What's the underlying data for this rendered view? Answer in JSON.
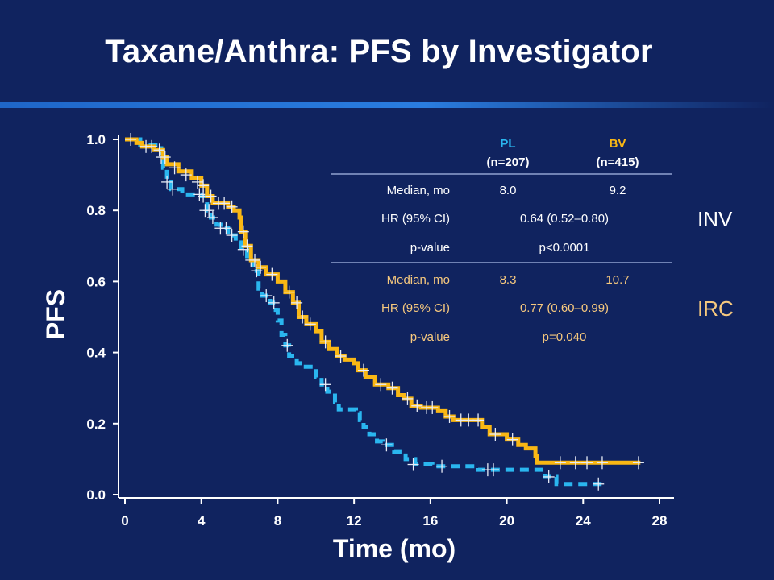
{
  "title": "Taxane/Anthra:  PFS by Investigator",
  "colors": {
    "background": "#10235f",
    "accent_rule": "#1f66c8",
    "pl": "#2ab6ef",
    "bv": "#f9b714",
    "irc_text": "#f7c97e",
    "pl_header": "#2ab6ef",
    "bv_header": "#f9b714"
  },
  "table": {
    "headers": [
      {
        "name": "PL",
        "n": "(n=207)"
      },
      {
        "name": "BV",
        "n": "(n=415)"
      }
    ],
    "inv": {
      "label": "INV",
      "rows": [
        {
          "label": "Median, mo",
          "pl": "8.0",
          "bv": "9.2"
        },
        {
          "label": "HR (95% CI)",
          "value": "0.64 (0.52–0.80)"
        },
        {
          "label": "p-value",
          "value": "p<0.0001"
        }
      ]
    },
    "irc": {
      "label": "IRC",
      "rows": [
        {
          "label": "Median, mo",
          "pl": "8.3",
          "bv": "10.7"
        },
        {
          "label": "HR (95% CI)",
          "value": "0.77 (0.60–0.99)"
        },
        {
          "label": "p-value",
          "value": "p=0.040"
        }
      ]
    }
  },
  "chart_data": {
    "type": "line",
    "xlabel": "Time (mo)",
    "ylabel": "PFS",
    "xlim": [
      0,
      28
    ],
    "ylim": [
      0,
      1.0
    ],
    "xticks": [
      "0",
      "4",
      "8",
      "12",
      "16",
      "20",
      "24",
      "28"
    ],
    "yticks": [
      "0.0",
      "0.2",
      "0.4",
      "0.6",
      "0.8",
      "1.0"
    ],
    "series": [
      {
        "name": "BV",
        "style": "solid",
        "color": "#f9b714",
        "step": [
          [
            0,
            1.0
          ],
          [
            0.6,
            0.99
          ],
          [
            0.9,
            0.98
          ],
          [
            1.5,
            0.97
          ],
          [
            2.0,
            0.95
          ],
          [
            2.2,
            0.93
          ],
          [
            2.8,
            0.91
          ],
          [
            3.5,
            0.89
          ],
          [
            4.0,
            0.87
          ],
          [
            4.3,
            0.84
          ],
          [
            4.6,
            0.82
          ],
          [
            5.4,
            0.81
          ],
          [
            5.7,
            0.8
          ],
          [
            6.0,
            0.78
          ],
          [
            6.1,
            0.74
          ],
          [
            6.3,
            0.7
          ],
          [
            6.6,
            0.66
          ],
          [
            7.0,
            0.64
          ],
          [
            7.4,
            0.62
          ],
          [
            8.0,
            0.6
          ],
          [
            8.4,
            0.57
          ],
          [
            8.8,
            0.54
          ],
          [
            9.1,
            0.5
          ],
          [
            9.5,
            0.48
          ],
          [
            10.0,
            0.46
          ],
          [
            10.3,
            0.43
          ],
          [
            10.7,
            0.41
          ],
          [
            11.1,
            0.39
          ],
          [
            11.5,
            0.38
          ],
          [
            12.0,
            0.37
          ],
          [
            12.2,
            0.35
          ],
          [
            12.6,
            0.33
          ],
          [
            13.1,
            0.31
          ],
          [
            13.8,
            0.3
          ],
          [
            14.3,
            0.28
          ],
          [
            14.6,
            0.27
          ],
          [
            15.0,
            0.25
          ],
          [
            15.5,
            0.245
          ],
          [
            16.4,
            0.235
          ],
          [
            16.8,
            0.22
          ],
          [
            17.2,
            0.21
          ],
          [
            18.3,
            0.21
          ],
          [
            18.7,
            0.19
          ],
          [
            19.1,
            0.17
          ],
          [
            20.0,
            0.155
          ],
          [
            20.6,
            0.14
          ],
          [
            21.0,
            0.13
          ],
          [
            21.5,
            0.11
          ],
          [
            21.6,
            0.09
          ],
          [
            27.0,
            0.09
          ]
        ],
        "censors": [
          [
            0.3,
            1.0
          ],
          [
            1.1,
            0.98
          ],
          [
            1.4,
            0.98
          ],
          [
            1.8,
            0.97
          ],
          [
            2.1,
            0.95
          ],
          [
            2.6,
            0.92
          ],
          [
            3.2,
            0.9
          ],
          [
            3.8,
            0.88
          ],
          [
            4.1,
            0.87
          ],
          [
            4.5,
            0.84
          ],
          [
            4.9,
            0.82
          ],
          [
            5.2,
            0.82
          ],
          [
            5.6,
            0.81
          ],
          [
            6.2,
            0.74
          ],
          [
            6.4,
            0.7
          ],
          [
            6.8,
            0.66
          ],
          [
            7.1,
            0.64
          ],
          [
            7.7,
            0.62
          ],
          [
            8.6,
            0.57
          ],
          [
            9.0,
            0.54
          ],
          [
            9.3,
            0.5
          ],
          [
            9.7,
            0.48
          ],
          [
            10.5,
            0.43
          ],
          [
            11.3,
            0.39
          ],
          [
            12.5,
            0.35
          ],
          [
            13.4,
            0.31
          ],
          [
            14.0,
            0.3
          ],
          [
            14.8,
            0.27
          ],
          [
            15.3,
            0.25
          ],
          [
            15.8,
            0.245
          ],
          [
            16.1,
            0.245
          ],
          [
            17.0,
            0.22
          ],
          [
            17.6,
            0.21
          ],
          [
            18.0,
            0.21
          ],
          [
            18.5,
            0.21
          ],
          [
            19.4,
            0.17
          ],
          [
            20.3,
            0.155
          ],
          [
            22.8,
            0.09
          ],
          [
            23.6,
            0.09
          ],
          [
            24.2,
            0.09
          ],
          [
            25.0,
            0.09
          ],
          [
            26.9,
            0.09
          ]
        ]
      },
      {
        "name": "PL",
        "style": "dashed",
        "color": "#2ab6ef",
        "step": [
          [
            0,
            1.0
          ],
          [
            0.8,
            0.985
          ],
          [
            1.6,
            0.975
          ],
          [
            1.9,
            0.95
          ],
          [
            2.0,
            0.92
          ],
          [
            2.2,
            0.88
          ],
          [
            2.4,
            0.86
          ],
          [
            3.0,
            0.845
          ],
          [
            4.0,
            0.84
          ],
          [
            4.3,
            0.8
          ],
          [
            4.5,
            0.78
          ],
          [
            4.8,
            0.76
          ],
          [
            5.0,
            0.75
          ],
          [
            5.4,
            0.73
          ],
          [
            5.8,
            0.71
          ],
          [
            6.1,
            0.69
          ],
          [
            6.4,
            0.66
          ],
          [
            6.7,
            0.63
          ],
          [
            7.0,
            0.58
          ],
          [
            7.2,
            0.56
          ],
          [
            7.6,
            0.54
          ],
          [
            7.9,
            0.52
          ],
          [
            8.0,
            0.49
          ],
          [
            8.2,
            0.45
          ],
          [
            8.4,
            0.42
          ],
          [
            8.6,
            0.39
          ],
          [
            9.0,
            0.37
          ],
          [
            9.3,
            0.36
          ],
          [
            10.0,
            0.33
          ],
          [
            10.3,
            0.31
          ],
          [
            10.6,
            0.29
          ],
          [
            11.0,
            0.26
          ],
          [
            11.2,
            0.24
          ],
          [
            12.1,
            0.23
          ],
          [
            12.3,
            0.21
          ],
          [
            12.5,
            0.19
          ],
          [
            12.8,
            0.17
          ],
          [
            13.2,
            0.15
          ],
          [
            13.5,
            0.14
          ],
          [
            14.1,
            0.12
          ],
          [
            14.7,
            0.1
          ],
          [
            15.2,
            0.085
          ],
          [
            16.1,
            0.08
          ],
          [
            18.5,
            0.07
          ],
          [
            22.0,
            0.05
          ],
          [
            22.6,
            0.03
          ],
          [
            25.0,
            0.03
          ]
        ],
        "censors": [
          [
            1.9,
            0.95
          ],
          [
            2.2,
            0.88
          ],
          [
            2.5,
            0.86
          ],
          [
            3.9,
            0.845
          ],
          [
            4.1,
            0.84
          ],
          [
            4.2,
            0.8
          ],
          [
            4.4,
            0.8
          ],
          [
            4.6,
            0.78
          ],
          [
            5.0,
            0.75
          ],
          [
            5.3,
            0.75
          ],
          [
            5.6,
            0.73
          ],
          [
            6.2,
            0.69
          ],
          [
            6.6,
            0.66
          ],
          [
            6.9,
            0.63
          ],
          [
            7.4,
            0.56
          ],
          [
            7.8,
            0.54
          ],
          [
            8.5,
            0.42
          ],
          [
            10.5,
            0.31
          ],
          [
            13.7,
            0.14
          ],
          [
            15.1,
            0.085
          ],
          [
            16.6,
            0.08
          ],
          [
            19.0,
            0.07
          ],
          [
            19.3,
            0.07
          ],
          [
            22.2,
            0.05
          ],
          [
            24.8,
            0.03
          ]
        ]
      }
    ]
  }
}
